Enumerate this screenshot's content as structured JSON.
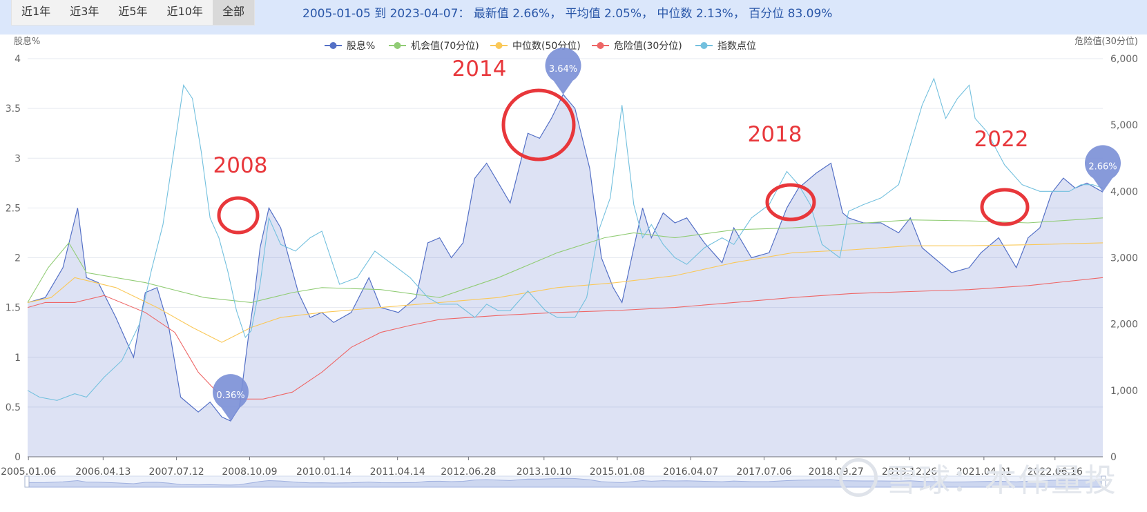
{
  "toolbar": {
    "ranges": [
      "近1年",
      "近3年",
      "近5年",
      "近10年",
      "全部"
    ],
    "active_range": "全部",
    "summary": "2005-01-05 到 2023-04-07： 最新值 2.66%， 平均值 2.05%， 中位数 2.13%， 百分位 83.09%"
  },
  "watermark": "雪球：本伟量投",
  "annotations": [
    "2008",
    "2014",
    "2018",
    "2022"
  ],
  "colors": {
    "dividend": "#5470c6",
    "opportunity": "#91cc75",
    "median": "#fac858",
    "danger": "#ee6666",
    "index": "#73c0de",
    "annotation": "#e8373b",
    "topbar": "#dbe7fb"
  },
  "chart_data": {
    "type": "line",
    "ylabel_left": "股息%",
    "ylabel_right": "危险值(30分位)",
    "ylim_left": [
      0,
      4
    ],
    "ylim_right": [
      0,
      6000
    ],
    "yticks_left": [
      "0",
      "0.5",
      "1",
      "1.5",
      "2",
      "2.5",
      "3",
      "3.5",
      "4"
    ],
    "yticks_right": [
      "0",
      "1,000",
      "2,000",
      "3,000",
      "4,000",
      "5,000",
      "6,000"
    ],
    "xticks": [
      "2005.01.06",
      "2006.04.13",
      "2007.07.12",
      "2008.10.09",
      "2010.01.14",
      "2011.04.14",
      "2012.06.28",
      "2013.10.10",
      "2015.01.08",
      "2016.04.07",
      "2017.07.06",
      "2018.09.27",
      "2019.12.26",
      "2021.04.01",
      "2022.06.16"
    ],
    "xlim": [
      2005.0,
      2023.27
    ],
    "legend_position": "top",
    "grid": true,
    "series": [
      {
        "name": "股息%",
        "axis": "left",
        "color": "#5470c6",
        "area": true,
        "x": [
          2005.0,
          2005.3,
          2005.6,
          2005.85,
          2006.0,
          2006.2,
          2006.5,
          2006.8,
          2007.0,
          2007.2,
          2007.4,
          2007.6,
          2007.9,
          2008.1,
          2008.3,
          2008.45,
          2008.6,
          2008.75,
          2008.85,
          2008.95,
          2009.1,
          2009.3,
          2009.6,
          2009.8,
          2010.0,
          2010.2,
          2010.5,
          2010.8,
          2011.0,
          2011.3,
          2011.6,
          2011.8,
          2012.0,
          2012.2,
          2012.4,
          2012.6,
          2012.8,
          2013.0,
          2013.2,
          2013.5,
          2013.7,
          2013.9,
          2014.1,
          2014.3,
          2014.55,
          2014.75,
          2014.95,
          2015.1,
          2015.3,
          2015.45,
          2015.6,
          2015.8,
          2016.0,
          2016.2,
          2016.5,
          2016.8,
          2017.0,
          2017.3,
          2017.6,
          2017.9,
          2018.1,
          2018.4,
          2018.65,
          2018.85,
          2018.95,
          2019.2,
          2019.5,
          2019.8,
          2020.0,
          2020.2,
          2020.4,
          2020.7,
          2021.0,
          2021.2,
          2021.5,
          2021.8,
          2022.0,
          2022.2,
          2022.4,
          2022.6,
          2022.8,
          2023.0,
          2023.27
        ],
        "y": [
          1.55,
          1.6,
          1.9,
          2.5,
          1.8,
          1.75,
          1.4,
          1.0,
          1.65,
          1.7,
          1.3,
          0.6,
          0.45,
          0.55,
          0.4,
          0.36,
          0.5,
          1.2,
          1.6,
          2.1,
          2.5,
          2.3,
          1.65,
          1.4,
          1.45,
          1.35,
          1.45,
          1.8,
          1.5,
          1.45,
          1.6,
          2.15,
          2.2,
          2.0,
          2.15,
          2.8,
          2.95,
          2.75,
          2.55,
          3.25,
          3.2,
          3.4,
          3.64,
          3.5,
          2.9,
          2.0,
          1.7,
          1.55,
          2.1,
          2.5,
          2.2,
          2.45,
          2.35,
          2.4,
          2.15,
          1.95,
          2.3,
          2.0,
          2.05,
          2.5,
          2.7,
          2.85,
          2.95,
          2.45,
          2.4,
          2.35,
          2.35,
          2.25,
          2.4,
          2.1,
          2.0,
          1.85,
          1.9,
          2.05,
          2.2,
          1.9,
          2.2,
          2.3,
          2.65,
          2.8,
          2.7,
          2.75,
          2.66
        ]
      },
      {
        "name": "机会值(70分位)",
        "axis": "left",
        "color": "#91cc75",
        "x": [
          2005.0,
          2005.35,
          2005.7,
          2006.0,
          2007.0,
          2008.0,
          2008.8,
          2009.5,
          2010.0,
          2011.0,
          2012.0,
          2013.0,
          2014.0,
          2014.8,
          2015.3,
          2016.0,
          2017.0,
          2018.0,
          2019.0,
          2020.0,
          2021.0,
          2022.0,
          2023.27
        ],
        "y": [
          1.55,
          1.9,
          2.15,
          1.85,
          1.75,
          1.6,
          1.55,
          1.65,
          1.7,
          1.68,
          1.6,
          1.8,
          2.05,
          2.2,
          2.25,
          2.2,
          2.28,
          2.3,
          2.34,
          2.38,
          2.37,
          2.35,
          2.4
        ]
      },
      {
        "name": "中位数(50分位)",
        "axis": "left",
        "color": "#fac858",
        "x": [
          2005.0,
          2005.4,
          2005.8,
          2006.5,
          2007.2,
          2007.8,
          2008.3,
          2008.8,
          2009.3,
          2010.0,
          2011.0,
          2012.0,
          2013.0,
          2014.0,
          2015.0,
          2016.0,
          2017.0,
          2018.0,
          2019.0,
          2020.0,
          2021.0,
          2022.0,
          2023.27
        ],
        "y": [
          1.55,
          1.6,
          1.8,
          1.7,
          1.5,
          1.3,
          1.15,
          1.3,
          1.4,
          1.45,
          1.5,
          1.55,
          1.6,
          1.7,
          1.75,
          1.82,
          1.95,
          2.05,
          2.08,
          2.12,
          2.12,
          2.13,
          2.15
        ]
      },
      {
        "name": "危险值(30分位)",
        "axis": "left",
        "color": "#ee6666",
        "x": [
          2005.0,
          2005.3,
          2005.8,
          2006.3,
          2007.0,
          2007.5,
          2007.9,
          2008.3,
          2008.5,
          2009.0,
          2009.5,
          2010.0,
          2010.5,
          2011.0,
          2011.5,
          2012.0,
          2013.0,
          2014.0,
          2015.0,
          2016.0,
          2017.0,
          2018.0,
          2019.0,
          2020.0,
          2021.0,
          2022.0,
          2023.27
        ],
        "y": [
          1.5,
          1.55,
          1.55,
          1.62,
          1.45,
          1.25,
          0.85,
          0.6,
          0.58,
          0.58,
          0.65,
          0.85,
          1.1,
          1.25,
          1.32,
          1.38,
          1.42,
          1.45,
          1.47,
          1.5,
          1.55,
          1.6,
          1.64,
          1.66,
          1.68,
          1.72,
          1.8
        ]
      },
      {
        "name": "指数点位",
        "axis": "right",
        "color": "#73c0de",
        "x": [
          2005.0,
          2005.2,
          2005.5,
          2005.8,
          2006.0,
          2006.3,
          2006.6,
          2006.9,
          2007.1,
          2007.3,
          2007.5,
          2007.65,
          2007.8,
          2007.95,
          2008.1,
          2008.25,
          2008.4,
          2008.55,
          2008.7,
          2008.8,
          2008.95,
          2009.1,
          2009.3,
          2009.55,
          2009.8,
          2010.0,
          2010.3,
          2010.6,
          2010.9,
          2011.2,
          2011.5,
          2011.8,
          2012.0,
          2012.3,
          2012.6,
          2012.8,
          2013.0,
          2013.2,
          2013.5,
          2013.8,
          2014.0,
          2014.3,
          2014.5,
          2014.7,
          2014.9,
          2015.1,
          2015.3,
          2015.45,
          2015.6,
          2015.8,
          2016.0,
          2016.2,
          2016.5,
          2016.8,
          2017.0,
          2017.3,
          2017.6,
          2017.9,
          2018.1,
          2018.3,
          2018.5,
          2018.8,
          2018.95,
          2019.2,
          2019.5,
          2019.8,
          2020.0,
          2020.2,
          2020.4,
          2020.6,
          2020.8,
          2021.0,
          2021.1,
          2021.3,
          2021.6,
          2021.9,
          2022.2,
          2022.5,
          2022.7,
          2022.9,
          2023.1,
          2023.27
        ],
        "y": [
          1000,
          900,
          850,
          950,
          900,
          1200,
          1450,
          2000,
          2800,
          3500,
          4700,
          5600,
          5400,
          4600,
          3600,
          3300,
          2800,
          2200,
          1800,
          1900,
          2600,
          3600,
          3200,
          3100,
          3300,
          3400,
          2600,
          2700,
          3100,
          2900,
          2700,
          2400,
          2300,
          2300,
          2100,
          2300,
          2200,
          2200,
          2500,
          2200,
          2100,
          2100,
          2400,
          3400,
          3900,
          5300,
          3800,
          3300,
          3500,
          3200,
          3000,
          2900,
          3150,
          3300,
          3200,
          3600,
          3800,
          4300,
          4100,
          3800,
          3200,
          3000,
          3700,
          3800,
          3900,
          4100,
          4700,
          5300,
          5700,
          5100,
          5400,
          5600,
          5100,
          4900,
          4400,
          4100,
          4000,
          4000,
          4000,
          4100,
          4100,
          4050
        ]
      }
    ],
    "markers": [
      {
        "label": "0.36%",
        "x": 2008.45,
        "y": 0.36
      },
      {
        "label": "3.64%",
        "x": 2014.1,
        "y": 3.64
      },
      {
        "label": "2.66%",
        "x": 2023.27,
        "y": 2.66
      }
    ]
  }
}
